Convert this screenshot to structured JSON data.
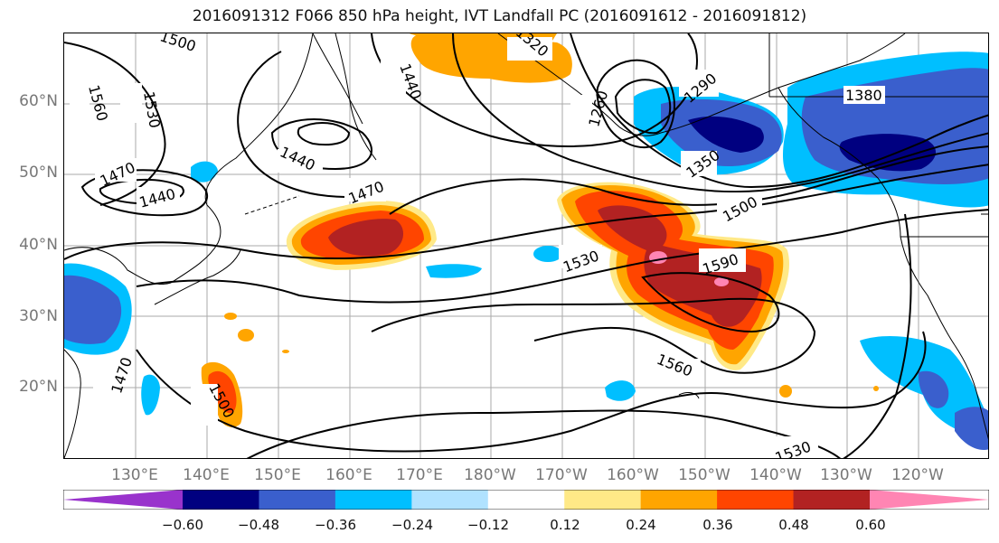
{
  "title": "2016091312 F066 850 hPa height, IVT Landfall PC (2016091612 - 2016091812)",
  "lat_labels": [
    "60°N",
    "50°N",
    "40°N",
    "30°N",
    "20°N"
  ],
  "lon_labels": [
    "130°E",
    "140°E",
    "150°E",
    "160°E",
    "170°E",
    "180°W",
    "170°W",
    "160°W",
    "150°W",
    "140°W",
    "130°W",
    "120°W"
  ],
  "contour_labels": [
    "1500",
    "1560",
    "1530",
    "1440",
    "1320",
    "1290",
    "1260",
    "1380",
    "1470",
    "1440",
    "1440",
    "1470",
    "1350",
    "1500",
    "1530",
    "1590",
    "1560",
    "1500",
    "1470",
    "1530"
  ],
  "colorbar": {
    "ticks": [
      "−0.60",
      "−0.48",
      "−0.36",
      "−0.24",
      "−0.12",
      "0.12",
      "0.24",
      "0.36",
      "0.48",
      "0.60"
    ],
    "colors": [
      "#9933cc",
      "#000080",
      "#3a5fcd",
      "#00bfff",
      "#b0e2ff",
      "#ffffff",
      "#ffe987",
      "#ffa500",
      "#ff4500",
      "#b22222",
      "#ff85b3"
    ]
  }
}
